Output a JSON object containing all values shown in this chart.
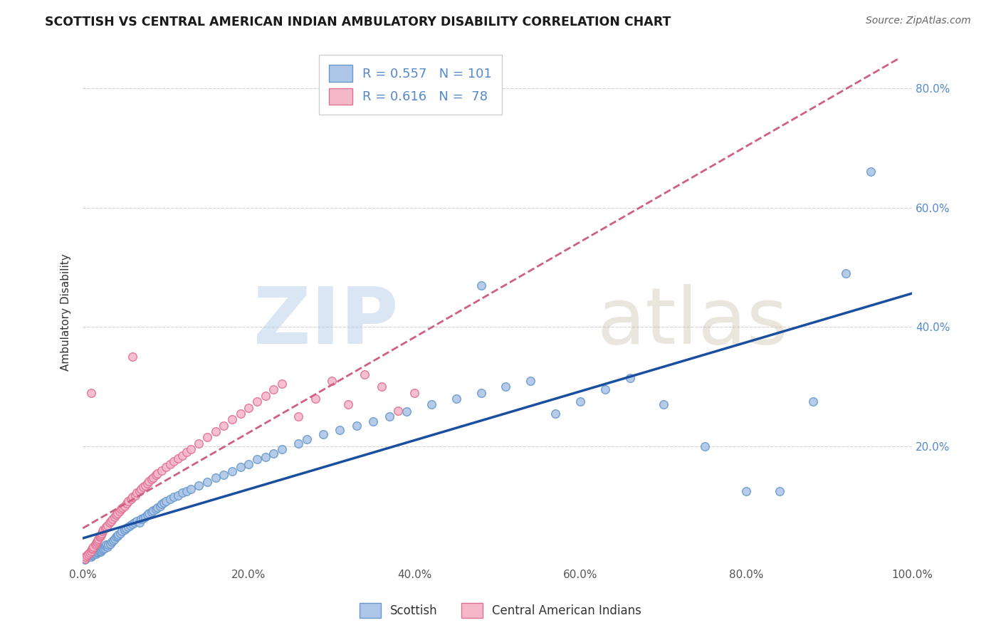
{
  "title": "SCOTTISH VS CENTRAL AMERICAN INDIAN AMBULATORY DISABILITY CORRELATION CHART",
  "source": "Source: ZipAtlas.com",
  "ylabel": "Ambulatory Disability",
  "xlabel": "",
  "xlim": [
    0,
    1.0
  ],
  "ylim": [
    0,
    0.85
  ],
  "xticks": [
    0.0,
    0.2,
    0.4,
    0.6,
    0.8,
    1.0
  ],
  "yticks": [
    0.0,
    0.2,
    0.4,
    0.6,
    0.8
  ],
  "xtick_labels": [
    "0.0%",
    "20.0%",
    "40.0%",
    "60.0%",
    "80.0%",
    "100.0%"
  ],
  "ytick_labels_right": [
    "",
    "20.0%",
    "40.0%",
    "60.0%",
    "80.0%"
  ],
  "scottish_color": "#aec6e8",
  "scottish_edge": "#6699cc",
  "pink_color": "#f5b8cb",
  "pink_edge": "#e07090",
  "blue_line_color": "#1a4fa0",
  "pink_line_color": "#d06080",
  "R_scottish": 0.557,
  "N_scottish": 101,
  "R_pink": 0.616,
  "N_pink": 78,
  "legend_label_scottish": "Scottish",
  "legend_label_pink": "Central American Indians",
  "background_color": "#ffffff",
  "grid_color": "#cccccc",
  "watermark_zip": "ZIP",
  "watermark_atlas": "atlas",
  "tick_color": "#5588cc",
  "label_color": "#333333"
}
